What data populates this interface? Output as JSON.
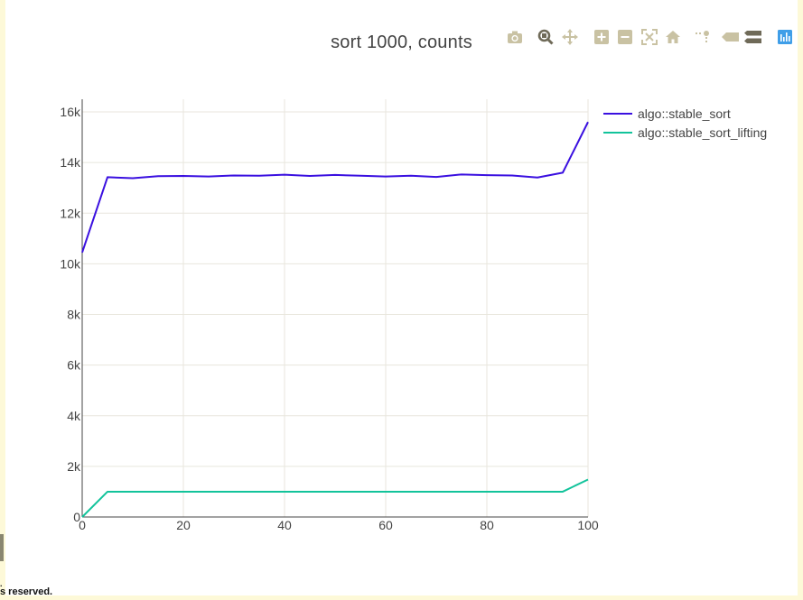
{
  "footer_fragment": {
    "top_line": ".",
    "text": "s reserved."
  },
  "modebar": {
    "icons": [
      "camera-icon",
      "zoom-icon",
      "pan-icon",
      "zoom-in-icon",
      "zoom-out-icon",
      "autoscale-icon",
      "home-icon",
      "spike-lines-icon",
      "hover-closest-icon",
      "hover-compare-icon",
      "plotly-logo-icon"
    ],
    "colors": {
      "icon": "#c9c2a3",
      "active": "#6f6a58",
      "logo": "#3f9ee8"
    }
  },
  "chart_data": {
    "type": "line",
    "title": "sort 1000, counts",
    "xlabel": "",
    "ylabel": "",
    "xlim": [
      0,
      100
    ],
    "ylim": [
      0,
      16500
    ],
    "x_ticks": [
      0,
      20,
      40,
      60,
      80,
      100
    ],
    "x_tick_labels": [
      "0",
      "20",
      "40",
      "60",
      "80",
      "100"
    ],
    "y_ticks": [
      0,
      2000,
      4000,
      6000,
      8000,
      10000,
      12000,
      14000,
      16000
    ],
    "y_tick_labels": [
      "0",
      "2k",
      "4k",
      "6k",
      "8k",
      "10k",
      "12k",
      "14k",
      "16k"
    ],
    "grid": true,
    "legend_position": "top-right",
    "x": [
      0,
      5,
      10,
      15,
      20,
      25,
      30,
      35,
      40,
      45,
      50,
      55,
      60,
      65,
      70,
      75,
      80,
      85,
      90,
      95,
      100
    ],
    "series": [
      {
        "name": "algo::stable_sort",
        "color": "#3a10e0",
        "values": [
          10450,
          13420,
          13380,
          13460,
          13470,
          13450,
          13490,
          13480,
          13520,
          13470,
          13510,
          13480,
          13450,
          13480,
          13430,
          13530,
          13500,
          13490,
          13410,
          13600,
          15600
        ]
      },
      {
        "name": "algo::stable_sort_lifting",
        "color": "#12c39b",
        "values": [
          0,
          1000,
          1000,
          1000,
          1000,
          1000,
          1000,
          1000,
          1000,
          1000,
          1000,
          1000,
          1000,
          1000,
          1000,
          1000,
          1000,
          1000,
          1000,
          1000,
          1480
        ]
      }
    ]
  }
}
